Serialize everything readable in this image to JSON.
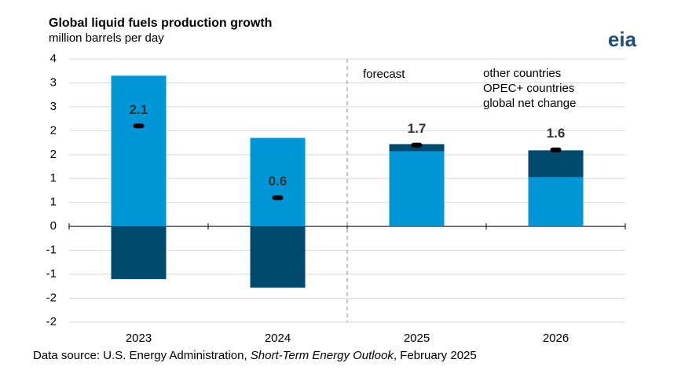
{
  "chart_data": {
    "type": "bar",
    "title": "Global liquid fuels production growth",
    "subtitle": "million barrels per day",
    "categories": [
      "2023",
      "2024",
      "2025",
      "2026"
    ],
    "series": [
      {
        "name": "other countries",
        "color": "#0096d7",
        "values": [
          3.15,
          1.85,
          1.57,
          1.03
        ]
      },
      {
        "name": "OPEC+ countries",
        "color": "#004a6e",
        "values": [
          -1.1,
          -1.28,
          0.15,
          0.56
        ]
      },
      {
        "name": "global net change",
        "color": "#000000",
        "type": "marker",
        "values": [
          2.1,
          0.6,
          1.7,
          1.6
        ]
      }
    ],
    "ylim": [
      -2,
      3.5
    ],
    "yticks": [
      {
        "value": -2,
        "label": "-2"
      },
      {
        "value": -1.5,
        "label": "-2"
      },
      {
        "value": -1,
        "label": "-1"
      },
      {
        "value": -0.5,
        "label": "-1"
      },
      0,
      {
        "value": 0.5,
        "label": "1"
      },
      1,
      {
        "value": 1.5,
        "label": "2"
      },
      2,
      {
        "value": 2.5,
        "label": "3"
      },
      3,
      {
        "value": 3.5,
        "label": "4"
      }
    ],
    "grid": true,
    "annotation": "forecast",
    "source": [
      "Data source: U.S. Energy Administration, ",
      "Short-Term Energy Outlook",
      ", February 2025"
    ],
    "logo": "eia"
  }
}
